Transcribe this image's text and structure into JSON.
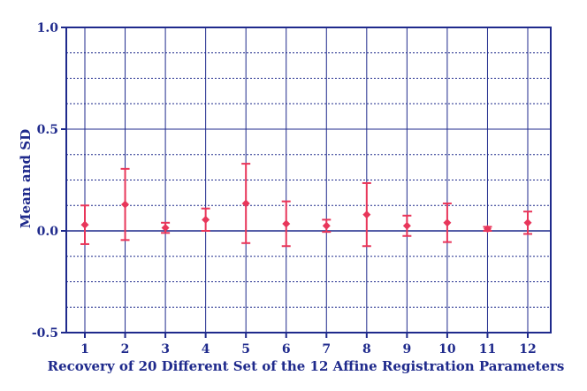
{
  "chart_data": {
    "type": "scatter",
    "subtype": "mean-with-sd-error-bars",
    "title": "",
    "xlabel": "Recovery of 20 Different Set of the 12 Affine Registration Parameters",
    "ylabel": "Mean and SD",
    "categories": [
      "1",
      "2",
      "3",
      "4",
      "5",
      "6",
      "7",
      "8",
      "9",
      "10",
      "11",
      "12"
    ],
    "ylim": [
      -0.5,
      1.0
    ],
    "yticks": [
      "-0.5",
      "0.0",
      "0.5",
      "1.0"
    ],
    "y_minor_grid": [
      -0.375,
      -0.25,
      -0.125,
      0.125,
      0.25,
      0.375,
      0.625,
      0.75,
      0.875
    ],
    "grid": "horizontal-dotted-and-vertical-solid",
    "series": [
      {
        "mean": [
          0.03,
          0.13,
          0.015,
          0.055,
          0.135,
          0.035,
          0.025,
          0.08,
          0.025,
          0.04,
          0.01,
          0.04
        ],
        "sd": [
          0.095,
          0.175,
          0.025,
          0.055,
          0.195,
          0.11,
          0.03,
          0.155,
          0.05,
          0.095,
          0.01,
          0.055
        ]
      }
    ],
    "colors": {
      "axis": "#1f2a8c",
      "grid": "#1f2a8c",
      "marker": "#e8365a"
    }
  }
}
